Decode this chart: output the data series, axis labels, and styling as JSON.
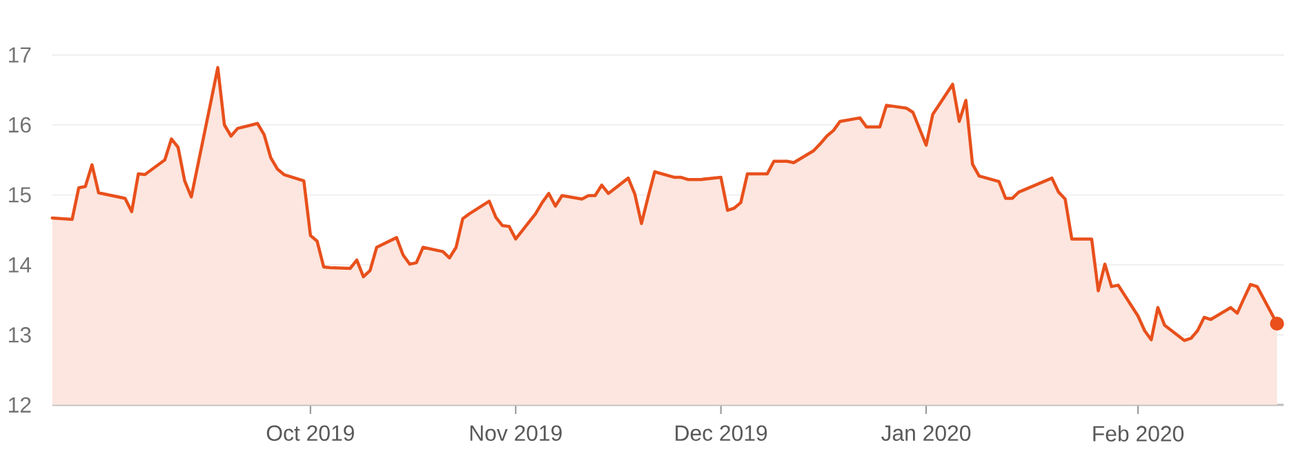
{
  "chart_data": {
    "type": "area",
    "color": "#e8501c",
    "x": [
      "2019-08-23",
      "2019-08-26",
      "2019-08-27",
      "2019-08-28",
      "2019-08-29",
      "2019-08-30",
      "2019-09-03",
      "2019-09-04",
      "2019-09-05",
      "2019-09-06",
      "2019-09-09",
      "2019-09-10",
      "2019-09-11",
      "2019-09-12",
      "2019-09-13",
      "2019-09-16",
      "2019-09-17",
      "2019-09-18",
      "2019-09-19",
      "2019-09-20",
      "2019-09-23",
      "2019-09-24",
      "2019-09-25",
      "2019-09-26",
      "2019-09-27",
      "2019-09-30",
      "2019-10-01",
      "2019-10-02",
      "2019-10-03",
      "2019-10-04",
      "2019-10-07",
      "2019-10-08",
      "2019-10-09",
      "2019-10-10",
      "2019-10-11",
      "2019-10-14",
      "2019-10-15",
      "2019-10-16",
      "2019-10-17",
      "2019-10-18",
      "2019-10-21",
      "2019-10-22",
      "2019-10-23",
      "2019-10-24",
      "2019-10-25",
      "2019-10-28",
      "2019-10-29",
      "2019-10-30",
      "2019-10-31",
      "2019-11-01",
      "2019-11-04",
      "2019-11-05",
      "2019-11-06",
      "2019-11-07",
      "2019-11-08",
      "2019-11-11",
      "2019-11-12",
      "2019-11-13",
      "2019-11-14",
      "2019-11-15",
      "2019-11-18",
      "2019-11-19",
      "2019-11-20",
      "2019-11-21",
      "2019-11-22",
      "2019-11-25",
      "2019-11-26",
      "2019-11-27",
      "2019-11-29",
      "2019-12-02",
      "2019-12-03",
      "2019-12-04",
      "2019-12-05",
      "2019-12-06",
      "2019-12-09",
      "2019-12-10",
      "2019-12-11",
      "2019-12-12",
      "2019-12-13",
      "2019-12-16",
      "2019-12-17",
      "2019-12-18",
      "2019-12-19",
      "2019-12-20",
      "2019-12-23",
      "2019-12-24",
      "2019-12-26",
      "2019-12-27",
      "2019-12-30",
      "2019-12-31",
      "2020-01-02",
      "2020-01-03",
      "2020-01-06",
      "2020-01-07",
      "2020-01-08",
      "2020-01-09",
      "2020-01-10",
      "2020-01-13",
      "2020-01-14",
      "2020-01-15",
      "2020-01-16",
      "2020-01-17",
      "2020-01-21",
      "2020-01-22",
      "2020-01-23",
      "2020-01-24",
      "2020-01-27",
      "2020-01-28",
      "2020-01-29",
      "2020-01-30",
      "2020-01-31",
      "2020-02-03",
      "2020-02-04",
      "2020-02-05",
      "2020-02-06",
      "2020-02-07",
      "2020-02-10",
      "2020-02-11",
      "2020-02-12",
      "2020-02-13",
      "2020-02-14",
      "2020-02-17",
      "2020-02-18",
      "2020-02-19",
      "2020-02-20",
      "2020-02-21",
      "2020-02-24"
    ],
    "values": [
      14.67,
      14.65,
      15.1,
      15.12,
      15.43,
      15.03,
      14.95,
      14.76,
      15.3,
      15.29,
      15.5,
      15.8,
      15.68,
      15.2,
      14.97,
      16.35,
      16.82,
      16.0,
      15.84,
      15.95,
      16.02,
      15.86,
      15.53,
      15.37,
      15.29,
      15.2,
      14.42,
      14.34,
      13.97,
      13.96,
      13.95,
      14.07,
      13.83,
      13.92,
      14.25,
      14.39,
      14.14,
      14.01,
      14.03,
      14.25,
      14.19,
      14.1,
      14.25,
      14.66,
      14.73,
      14.91,
      14.68,
      14.56,
      14.55,
      14.37,
      14.73,
      14.89,
      15.02,
      14.84,
      14.99,
      14.94,
      14.99,
      14.99,
      15.14,
      15.02,
      15.24,
      15.01,
      14.59,
      14.97,
      15.33,
      15.25,
      15.25,
      15.22,
      15.22,
      15.25,
      14.78,
      14.81,
      14.89,
      15.3,
      15.3,
      15.48,
      15.48,
      15.48,
      15.46,
      15.63,
      15.73,
      15.84,
      15.92,
      16.05,
      16.1,
      15.97,
      15.97,
      16.28,
      16.24,
      16.18,
      15.71,
      16.15,
      16.58,
      16.05,
      16.35,
      15.44,
      15.27,
      15.19,
      14.95,
      14.95,
      15.04,
      15.08,
      15.24,
      15.04,
      14.94,
      14.37,
      14.37,
      13.63,
      14.01,
      13.69,
      13.71,
      13.27,
      13.06,
      12.93,
      13.39,
      13.14,
      12.92,
      12.95,
      13.06,
      13.25,
      13.22,
      13.39,
      13.31,
      13.52,
      13.72,
      13.69,
      13.16
    ],
    "xlim": [
      "2019-08-23",
      "2020-02-25"
    ],
    "xticks": [
      {
        "value": "2019-10-01",
        "label": "Oct 2019"
      },
      {
        "value": "2019-11-01",
        "label": "Nov 2019"
      },
      {
        "value": "2019-12-02",
        "label": "Dec 2019"
      },
      {
        "value": "2020-01-02",
        "label": "Jan 2020"
      },
      {
        "value": "2020-02-03",
        "label": "Feb 2020"
      }
    ],
    "ylim": [
      12,
      17
    ],
    "yticks": [
      12,
      13,
      14,
      15,
      16,
      17
    ],
    "grid": "y"
  }
}
